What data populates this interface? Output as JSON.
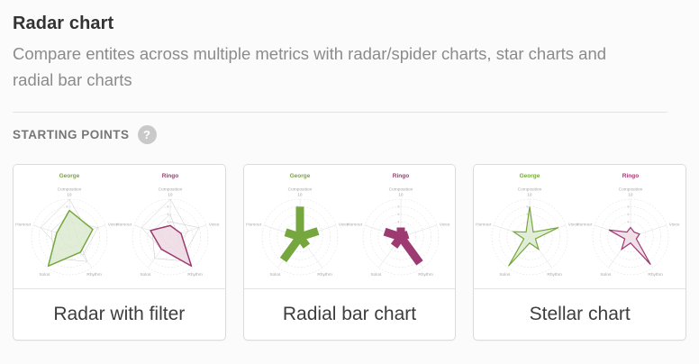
{
  "header": {
    "title": "Radar chart",
    "description": "Compare entites across multiple metrics with radar/spider charts, star charts and radial bar charts"
  },
  "section": {
    "label": "STARTING POINTS",
    "help_icon": "?"
  },
  "cards": [
    {
      "label": "Radar with filter"
    },
    {
      "label": "Radial bar chart"
    },
    {
      "label": "Stellar chart"
    }
  ],
  "series_colors": {
    "George": {
      "stroke": "#76a73f",
      "fill": "#dcead0"
    },
    "Ringo": {
      "stroke": "#9d3a72",
      "fill": "#eed9e4"
    }
  },
  "grid_colors": {
    "circle": "#d6d6d6",
    "spoke": "#dadada",
    "web": "#c8c8c8",
    "axis_label": "#a8a8a8",
    "tick_label": "#bcbcbc",
    "tick_max_label": "#999999"
  },
  "chart_data": [
    {
      "type": "radar",
      "title": "Radar with filter",
      "axes": [
        "Composition",
        "Voice",
        "Rhythm",
        "Solos",
        "Humour"
      ],
      "rmax": 10,
      "ticks": [
        2,
        4,
        6,
        8
      ],
      "tick_max": 10,
      "series": [
        {
          "name": "George",
          "values": [
            7,
            6.5,
            5,
            9.5,
            3.5
          ]
        },
        {
          "name": "Ringo",
          "values": [
            3,
            3,
            9.5,
            4,
            5.5
          ]
        }
      ],
      "background_webs": [
        [
          10,
          5,
          3,
          4,
          8
        ],
        [
          4,
          8,
          6,
          2,
          3
        ],
        [
          6,
          2,
          8,
          7,
          5
        ]
      ]
    },
    {
      "type": "radial-bar",
      "title": "Radial bar chart",
      "axes": [
        "Composition",
        "Voice",
        "Rhythm",
        "Solos",
        "Humour"
      ],
      "rmax": 10,
      "ticks": [
        2,
        4,
        6,
        8
      ],
      "tick_max": 10,
      "series": [
        {
          "name": "George",
          "values": [
            8,
            5,
            3,
            7.5,
            4
          ]
        },
        {
          "name": "Ringo",
          "values": [
            2.5,
            2,
            8.5,
            3,
            4.5
          ]
        }
      ]
    },
    {
      "type": "stellar",
      "title": "Stellar chart",
      "axes": [
        "Composition",
        "Voice",
        "Rhythm",
        "Solos",
        "Humour"
      ],
      "rmax": 10,
      "ticks": [
        2,
        4,
        6,
        8
      ],
      "tick_max": 10,
      "series": [
        {
          "name": "George",
          "values": [
            8,
            8,
            4,
            9.5,
            4.5
          ]
        },
        {
          "name": "Ringo",
          "values": [
            2.5,
            2.5,
            9,
            4,
            6
          ]
        }
      ]
    }
  ]
}
